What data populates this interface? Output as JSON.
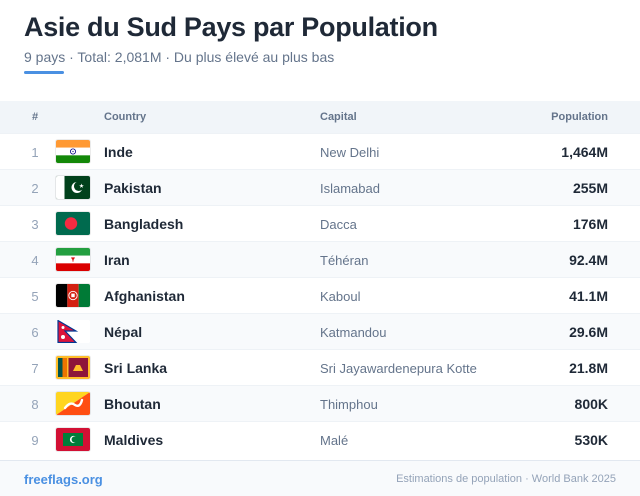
{
  "header": {
    "title": "Asie du Sud Pays par Population",
    "subtitle": "9 pays · Total: 2,081M · Du plus élevé au plus bas",
    "accent_color": "#4a90e2"
  },
  "table": {
    "columns": {
      "rank": "#",
      "country": "Country",
      "capital": "Capital",
      "population": "Population"
    },
    "rows": [
      {
        "rank": "1",
        "country": "Inde",
        "capital": "New Delhi",
        "population": "1,464M",
        "flag_icon": "india-flag-icon"
      },
      {
        "rank": "2",
        "country": "Pakistan",
        "capital": "Islamabad",
        "population": "255M",
        "flag_icon": "pakistan-flag-icon"
      },
      {
        "rank": "3",
        "country": "Bangladesh",
        "capital": "Dacca",
        "population": "176M",
        "flag_icon": "bangladesh-flag-icon"
      },
      {
        "rank": "4",
        "country": "Iran",
        "capital": "Téhéran",
        "population": "92.4M",
        "flag_icon": "iran-flag-icon"
      },
      {
        "rank": "5",
        "country": "Afghanistan",
        "capital": "Kaboul",
        "population": "41.1M",
        "flag_icon": "afghanistan-flag-icon"
      },
      {
        "rank": "6",
        "country": "Népal",
        "capital": "Katmandou",
        "population": "29.6M",
        "flag_icon": "nepal-flag-icon"
      },
      {
        "rank": "7",
        "country": "Sri Lanka",
        "capital": "Sri Jayawardenepura Kotte",
        "population": "21.8M",
        "flag_icon": "sri-lanka-flag-icon"
      },
      {
        "rank": "8",
        "country": "Bhoutan",
        "capital": "Thimphou",
        "population": "800K",
        "flag_icon": "bhutan-flag-icon"
      },
      {
        "rank": "9",
        "country": "Maldives",
        "capital": "Malé",
        "population": "530K",
        "flag_icon": "maldives-flag-icon"
      }
    ]
  },
  "footer": {
    "site": "freeflags.org",
    "source": "Estimations de population · World Bank 2025"
  }
}
